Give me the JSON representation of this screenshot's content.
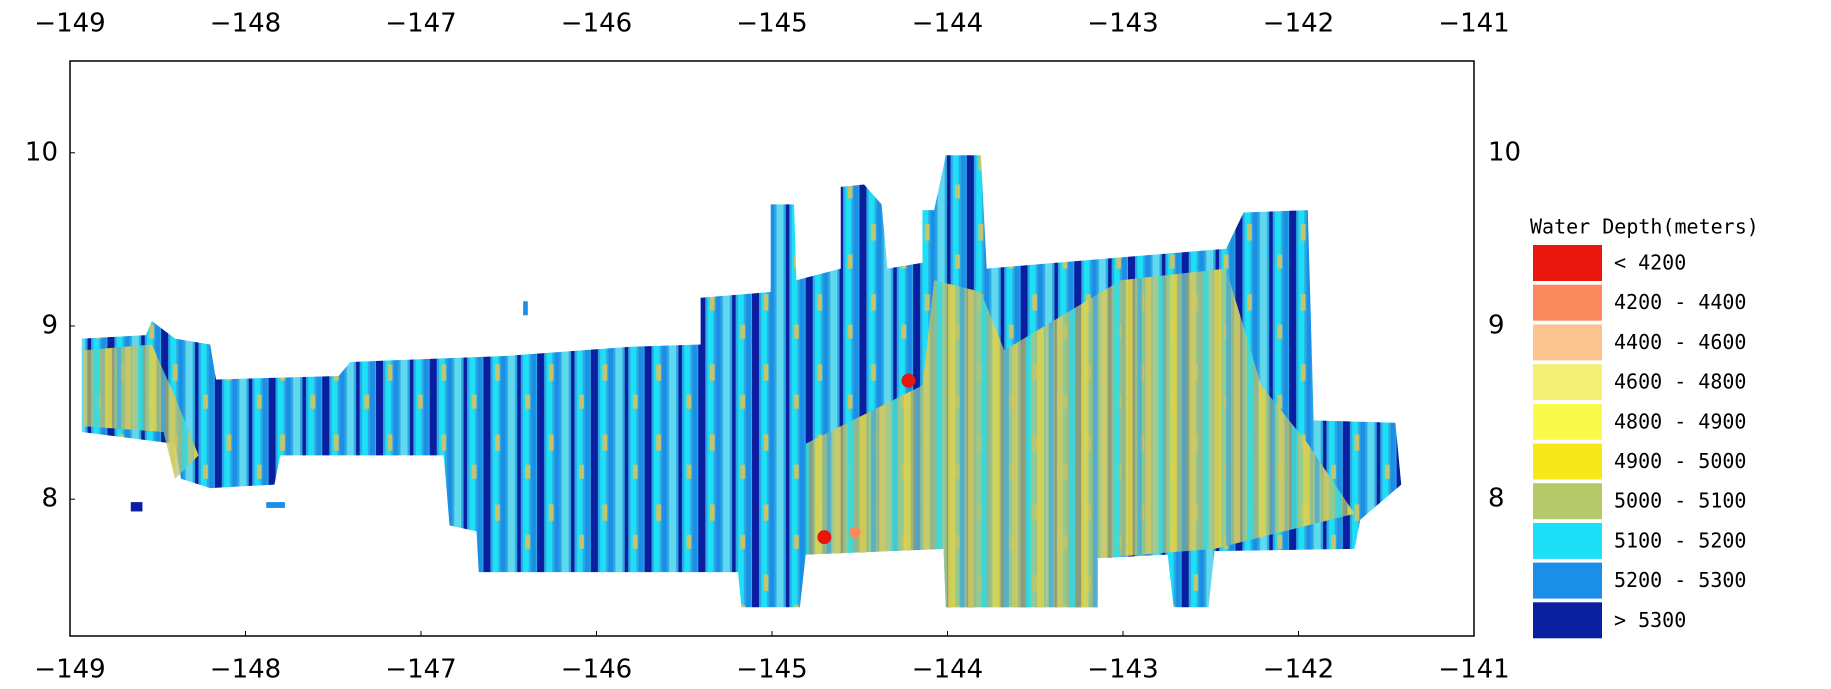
{
  "chart_data": {
    "type": "map",
    "xlim": [
      -149,
      -141
    ],
    "ylim": [
      7.21,
      10.53
    ],
    "xticks": [
      {
        "value": -149,
        "label": "−149"
      },
      {
        "value": -148,
        "label": "−148"
      },
      {
        "value": -147,
        "label": "−147"
      },
      {
        "value": -146,
        "label": "−146"
      },
      {
        "value": -145,
        "label": "−145"
      },
      {
        "value": -144,
        "label": "−144"
      },
      {
        "value": -143,
        "label": "−143"
      },
      {
        "value": -142,
        "label": "−142"
      },
      {
        "value": -141,
        "label": "−141"
      }
    ],
    "yticks": [
      8,
      9,
      10
    ],
    "legend": {
      "title": "Water Depth(meters)",
      "items": [
        {
          "label": "< 4200",
          "color": "#e8160c"
        },
        {
          "label": "4200 - 4400",
          "color": "#f98a5e"
        },
        {
          "label": "4400 - 4600",
          "color": "#fbc48f"
        },
        {
          "label": "4600 - 4800",
          "color": "#f4ef76"
        },
        {
          "label": "4800 - 4900",
          "color": "#fafa4c"
        },
        {
          "label": "4900 - 5000",
          "color": "#f7e81c"
        },
        {
          "label": "5000 - 5100",
          "color": "#b5c96a"
        },
        {
          "label": "5100 - 5200",
          "color": "#1be0f8"
        },
        {
          "label": "5200 - 5300",
          "color": "#1b8ee8"
        },
        {
          "label": "> 5300",
          "color": "#0a1ea0"
        }
      ]
    }
  }
}
